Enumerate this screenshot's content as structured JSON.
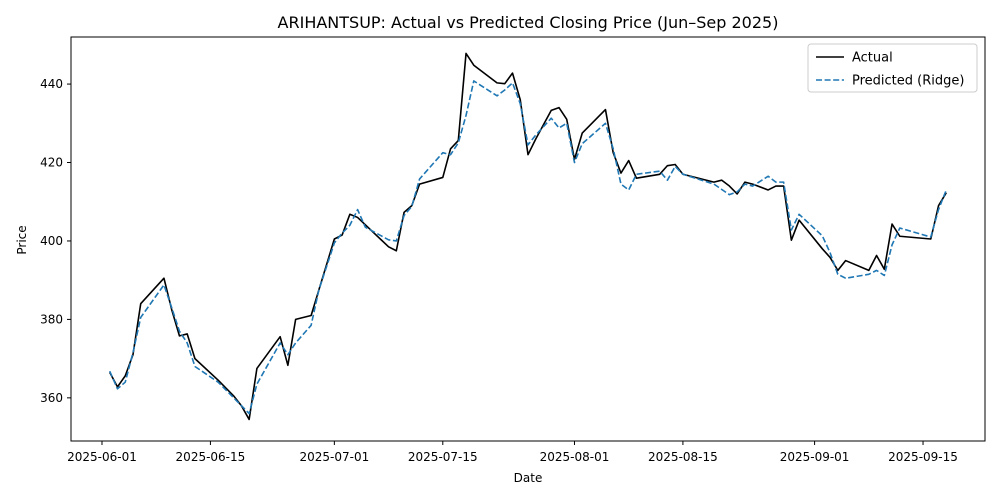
{
  "chart_data": {
    "type": "line",
    "title": "ARIHANTSUP: Actual vs Predicted Closing Price (Jun–Sep 2025)",
    "xlabel": "Date",
    "ylabel": "Price",
    "xlim": [
      "2025-05-28",
      "2025-09-23"
    ],
    "ylim": [
      349,
      452
    ],
    "x_ticks": [
      "2025-06-01",
      "2025-06-15",
      "2025-07-01",
      "2025-07-15",
      "2025-08-01",
      "2025-08-15",
      "2025-09-01",
      "2025-09-15"
    ],
    "y_ticks": [
      360,
      380,
      400,
      420,
      440
    ],
    "grid": false,
    "legend_position": "top-right",
    "series": [
      {
        "name": "Actual",
        "color": "#000000",
        "style": "solid",
        "points": [
          [
            "2025-06-02",
            366.5
          ],
          [
            "2025-06-03",
            362.8
          ],
          [
            "2025-06-04",
            365.6
          ],
          [
            "2025-06-05",
            371.0
          ],
          [
            "2025-06-06",
            384.0
          ],
          [
            "2025-06-09",
            390.5
          ],
          [
            "2025-06-10",
            382.5
          ],
          [
            "2025-06-11",
            375.8
          ],
          [
            "2025-06-12",
            376.3
          ],
          [
            "2025-06-13",
            370.0
          ],
          [
            "2025-06-16",
            364.5
          ],
          [
            "2025-06-18",
            360.5
          ],
          [
            "2025-06-19",
            358.0
          ],
          [
            "2025-06-20",
            354.5
          ],
          [
            "2025-06-21",
            367.5
          ],
          [
            "2025-06-24",
            375.6
          ],
          [
            "2025-06-25",
            368.3
          ],
          [
            "2025-06-26",
            380.0
          ],
          [
            "2025-06-28",
            381.0
          ],
          [
            "2025-06-29",
            387.5
          ],
          [
            "2025-07-01",
            400.5
          ],
          [
            "2025-07-02",
            401.5
          ],
          [
            "2025-07-03",
            406.8
          ],
          [
            "2025-07-04",
            406.0
          ],
          [
            "2025-07-08",
            398.5
          ],
          [
            "2025-07-09",
            397.5
          ],
          [
            "2025-07-10",
            407.3
          ],
          [
            "2025-07-11",
            409.0
          ],
          [
            "2025-07-12",
            414.5
          ],
          [
            "2025-07-15",
            416.2
          ],
          [
            "2025-07-16",
            423.5
          ],
          [
            "2025-07-17",
            425.6
          ],
          [
            "2025-07-18",
            447.8
          ],
          [
            "2025-07-19",
            444.8
          ],
          [
            "2025-07-22",
            440.3
          ],
          [
            "2025-07-23",
            440.1
          ],
          [
            "2025-07-24",
            442.8
          ],
          [
            "2025-07-25",
            436.0
          ],
          [
            "2025-07-26",
            422.0
          ],
          [
            "2025-07-27",
            426.0
          ],
          [
            "2025-07-29",
            433.3
          ],
          [
            "2025-07-30",
            434.0
          ],
          [
            "2025-07-31",
            431.0
          ],
          [
            "2025-08-01",
            420.8
          ],
          [
            "2025-08-02",
            427.5
          ],
          [
            "2025-08-05",
            433.5
          ],
          [
            "2025-08-06",
            422.5
          ],
          [
            "2025-08-07",
            417.3
          ],
          [
            "2025-08-08",
            420.5
          ],
          [
            "2025-08-09",
            416.0
          ],
          [
            "2025-08-12",
            417.0
          ],
          [
            "2025-08-13",
            419.2
          ],
          [
            "2025-08-14",
            419.5
          ],
          [
            "2025-08-15",
            417.0
          ],
          [
            "2025-08-19",
            415.0
          ],
          [
            "2025-08-20",
            415.5
          ],
          [
            "2025-08-21",
            414.0
          ],
          [
            "2025-08-22",
            412.0
          ],
          [
            "2025-08-23",
            415.0
          ],
          [
            "2025-08-24",
            414.5
          ],
          [
            "2025-08-26",
            413.0
          ],
          [
            "2025-08-27",
            414.0
          ],
          [
            "2025-08-28",
            414.0
          ],
          [
            "2025-08-29",
            400.2
          ],
          [
            "2025-08-30",
            405.3
          ],
          [
            "2025-09-02",
            398.0
          ],
          [
            "2025-09-03",
            395.8
          ],
          [
            "2025-09-04",
            392.5
          ],
          [
            "2025-09-05",
            395.0
          ],
          [
            "2025-09-08",
            392.5
          ],
          [
            "2025-09-09",
            396.3
          ],
          [
            "2025-09-10",
            392.8
          ],
          [
            "2025-09-11",
            404.3
          ],
          [
            "2025-09-12",
            401.2
          ],
          [
            "2025-09-16",
            400.5
          ],
          [
            "2025-09-17",
            409.0
          ],
          [
            "2025-09-18",
            412.3
          ]
        ]
      },
      {
        "name": "Predicted (Ridge)",
        "color": "#1f77b4",
        "style": "dashed",
        "points": [
          [
            "2025-06-02",
            366.8
          ],
          [
            "2025-06-03",
            362.3
          ],
          [
            "2025-06-04",
            364.0
          ],
          [
            "2025-06-05",
            371.5
          ],
          [
            "2025-06-06",
            380.5
          ],
          [
            "2025-06-09",
            388.8
          ],
          [
            "2025-06-10",
            383.0
          ],
          [
            "2025-06-11",
            377.0
          ],
          [
            "2025-06-12",
            374.0
          ],
          [
            "2025-06-13",
            368.0
          ],
          [
            "2025-06-16",
            364.0
          ],
          [
            "2025-06-18",
            360.0
          ],
          [
            "2025-06-19",
            358.0
          ],
          [
            "2025-06-20",
            356.0
          ],
          [
            "2025-06-21",
            363.5
          ],
          [
            "2025-06-24",
            374.0
          ],
          [
            "2025-06-25",
            371.0
          ],
          [
            "2025-06-26",
            374.0
          ],
          [
            "2025-06-28",
            378.5
          ],
          [
            "2025-06-29",
            387.5
          ],
          [
            "2025-07-01",
            399.5
          ],
          [
            "2025-07-02",
            402.0
          ],
          [
            "2025-07-03",
            404.0
          ],
          [
            "2025-07-04",
            408.0
          ],
          [
            "2025-07-05",
            403.5
          ],
          [
            "2025-07-08",
            400.3
          ],
          [
            "2025-07-09",
            400.0
          ],
          [
            "2025-07-10",
            406.5
          ],
          [
            "2025-07-11",
            408.8
          ],
          [
            "2025-07-12",
            415.8
          ],
          [
            "2025-07-15",
            422.5
          ],
          [
            "2025-07-16",
            422.0
          ],
          [
            "2025-07-17",
            425.0
          ],
          [
            "2025-07-18",
            432.0
          ],
          [
            "2025-07-19",
            440.8
          ],
          [
            "2025-07-22",
            437.0
          ],
          [
            "2025-07-23",
            438.5
          ],
          [
            "2025-07-24",
            440.3
          ],
          [
            "2025-07-25",
            435.0
          ],
          [
            "2025-07-26",
            424.5
          ],
          [
            "2025-07-27",
            427.0
          ],
          [
            "2025-07-29",
            431.3
          ],
          [
            "2025-07-30",
            428.8
          ],
          [
            "2025-07-31",
            430.0
          ],
          [
            "2025-08-01",
            420.0
          ],
          [
            "2025-08-02",
            424.8
          ],
          [
            "2025-08-05",
            430.0
          ],
          [
            "2025-08-06",
            423.5
          ],
          [
            "2025-08-07",
            414.5
          ],
          [
            "2025-08-08",
            413.0
          ],
          [
            "2025-08-09",
            417.0
          ],
          [
            "2025-08-12",
            417.8
          ],
          [
            "2025-08-13",
            415.5
          ],
          [
            "2025-08-14",
            419.0
          ],
          [
            "2025-08-15",
            417.0
          ],
          [
            "2025-08-19",
            414.5
          ],
          [
            "2025-08-21",
            411.8
          ],
          [
            "2025-08-22",
            412.5
          ],
          [
            "2025-08-23",
            414.5
          ],
          [
            "2025-08-24",
            414.0
          ],
          [
            "2025-08-26",
            416.5
          ],
          [
            "2025-08-27",
            415.0
          ],
          [
            "2025-08-28",
            415.0
          ],
          [
            "2025-08-29",
            402.8
          ],
          [
            "2025-08-30",
            406.8
          ],
          [
            "2025-09-02",
            401.3
          ],
          [
            "2025-09-03",
            397.0
          ],
          [
            "2025-09-04",
            391.5
          ],
          [
            "2025-09-05",
            390.5
          ],
          [
            "2025-09-08",
            391.5
          ],
          [
            "2025-09-09",
            392.5
          ],
          [
            "2025-09-10",
            391.2
          ],
          [
            "2025-09-11",
            399.0
          ],
          [
            "2025-09-12",
            403.3
          ],
          [
            "2025-09-16",
            401.0
          ],
          [
            "2025-09-17",
            408.0
          ],
          [
            "2025-09-18",
            413.0
          ]
        ]
      }
    ]
  }
}
